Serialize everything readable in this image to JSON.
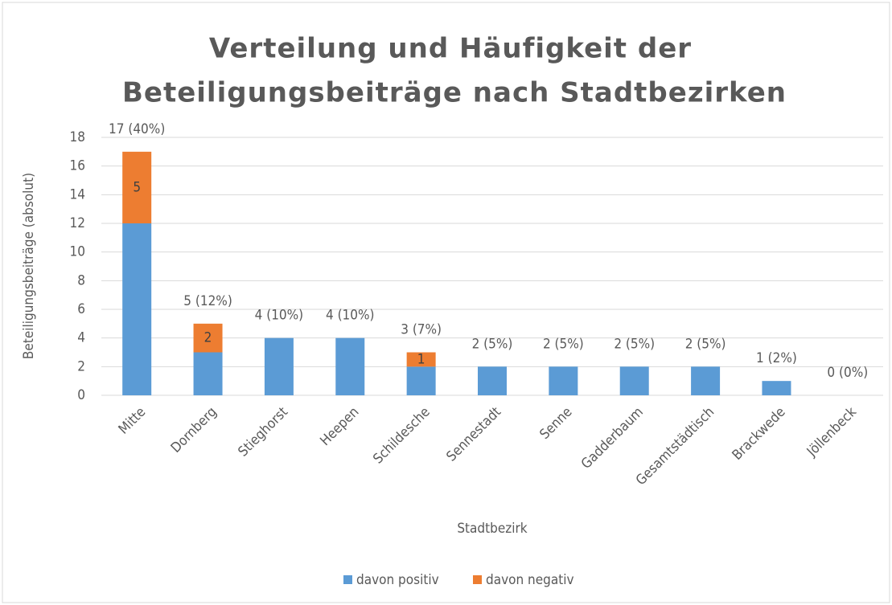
{
  "chart_data": {
    "type": "stacked_bar",
    "title": [
      "Verteilung und Häufigkeit der",
      "Beteiligungsbeiträge nach Stadtbezirken"
    ],
    "x_label": "Stadtbezirk",
    "y_label": "Beteiligungsbeiträge (absolut)",
    "categories": [
      "Mitte",
      "Dornberg",
      "Stieghorst",
      "Heepen",
      "Schildesche",
      "Sennestadt",
      "Senne",
      "Gadderbaum",
      "Gesamtstädtisch",
      "Brackwede",
      "Jöllenbeck"
    ],
    "series": [
      {
        "name": "davon positiv",
        "color": "#5b9bd5",
        "values": [
          12,
          3,
          4,
          4,
          2,
          2,
          2,
          2,
          2,
          1,
          0
        ]
      },
      {
        "name": "davon negativ",
        "color": "#ed7d31",
        "values": [
          5,
          2,
          0,
          0,
          1,
          0,
          0,
          0,
          0,
          0,
          0
        ]
      }
    ],
    "total_labels": [
      "17 (40%)",
      "5 (12%)",
      "4 (10%)",
      "4 (10%)",
      "3 (7%)",
      "2 (5%)",
      "2 (5%)",
      "2 (5%)",
      "2 (5%)",
      "1 (2%)",
      "0 (0%)"
    ],
    "ylim": [
      0,
      18
    ],
    "yticks": [
      0,
      2,
      4,
      6,
      8,
      10,
      12,
      14,
      16,
      18
    ],
    "grid": true,
    "legend": "bottom"
  }
}
